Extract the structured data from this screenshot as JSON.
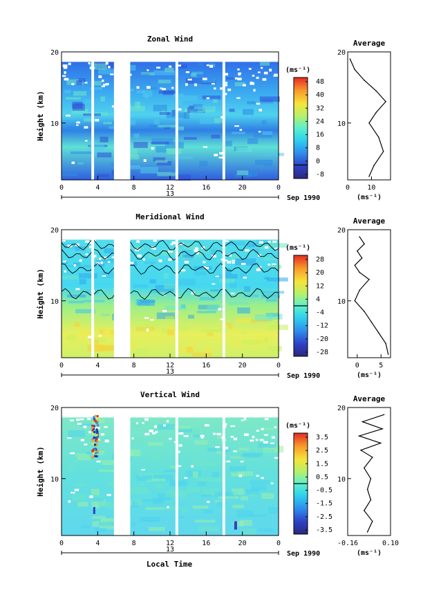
{
  "chart_data": [
    {
      "type": "heatmap",
      "title": "Zonal Wind",
      "ylabel": "Height (km)",
      "xlabel": "",
      "x_ticks": [
        "0",
        "4",
        "8",
        "12",
        "16",
        "20",
        "0"
      ],
      "y_ticks": [
        "20",
        "10"
      ],
      "date_label": "13",
      "month_label": "Sep 1990",
      "xlim": [
        0,
        24
      ],
      "ylim": [
        2,
        20
      ],
      "colorbar": {
        "unit": "(ms⁻¹)",
        "labels": [
          "48",
          "40",
          "32",
          "24",
          "16",
          "8",
          "0",
          "-8"
        ],
        "range": [
          -8,
          52
        ]
      },
      "data_gaps_hours": [
        [
          3.3,
          3.6
        ],
        [
          5.8,
          7.6
        ],
        [
          12.6,
          12.9
        ],
        [
          17.8,
          18.1
        ]
      ],
      "profile": {
        "title": "Average",
        "xlabel": "(ms⁻¹)",
        "x_ticks": [
          "0",
          "10"
        ],
        "y_ticks": [
          "20",
          "10"
        ],
        "xlim": [
          0,
          18
        ],
        "heights": [
          2.5,
          4,
          6,
          8,
          10,
          11.5,
          13,
          14.5,
          16,
          17.5,
          19
        ],
        "values": [
          9,
          11,
          15,
          13,
          9,
          12,
          16,
          12,
          7,
          3,
          1
        ]
      }
    },
    {
      "type": "heatmap",
      "title": "Meridional Wind",
      "ylabel": "Height (km)",
      "xlabel": "",
      "x_ticks": [
        "0",
        "4",
        "8",
        "12",
        "16",
        "20",
        "0"
      ],
      "y_ticks": [
        "20",
        "10"
      ],
      "date_label": "13",
      "month_label": "Sep 1990",
      "xlim": [
        0,
        24
      ],
      "ylim": [
        2,
        20
      ],
      "colorbar": {
        "unit": "(ms⁻¹)",
        "labels": [
          "28",
          "20",
          "12",
          "4",
          "-4",
          "-12",
          "-20",
          "-28"
        ],
        "range": [
          -32,
          32
        ]
      },
      "data_gaps_hours": [
        [
          3.3,
          3.6
        ],
        [
          5.8,
          7.6
        ],
        [
          12.6,
          12.9
        ],
        [
          17.8,
          18.1
        ]
      ],
      "profile": {
        "title": "Average",
        "xlabel": "(ms⁻¹)",
        "x_ticks": [
          "0",
          "5"
        ],
        "y_ticks": [
          "20",
          "10"
        ],
        "xlim": [
          -2,
          7
        ],
        "heights": [
          2.5,
          4,
          5.5,
          7,
          8.5,
          10,
          11.5,
          13,
          14,
          15,
          16,
          17,
          18,
          19
        ],
        "values": [
          6.5,
          6,
          4.5,
          3,
          1.5,
          -0.5,
          0.5,
          2.5,
          0.5,
          -0.5,
          1,
          0,
          1.5,
          0.5
        ]
      }
    },
    {
      "type": "heatmap",
      "title": "Vertical Wind",
      "ylabel": "Height (km)",
      "xlabel": "Local Time",
      "x_ticks": [
        "0",
        "4",
        "8",
        "12",
        "16",
        "20",
        "0"
      ],
      "y_ticks": [
        "20",
        "10"
      ],
      "date_label": "13",
      "month_label": "Sep 1990",
      "xlim": [
        0,
        24
      ],
      "ylim": [
        2,
        20
      ],
      "colorbar": {
        "unit": "(ms⁻¹)",
        "labels": [
          "3.5",
          "2.5",
          "1.5",
          "0.5",
          "-0.5",
          "-1.5",
          "-2.5",
          "-3.5"
        ],
        "range": [
          -4,
          4
        ]
      },
      "data_gaps_hours": [
        [
          5.8,
          7.6
        ],
        [
          12.6,
          12.9
        ],
        [
          17.8,
          18.1
        ]
      ],
      "profile": {
        "title": "Average",
        "xlabel": "(ms⁻¹)",
        "x_ticks": [
          "-0.16",
          "0.10"
        ],
        "y_ticks": [
          "20",
          "10"
        ],
        "xlim": [
          -0.16,
          0.1
        ],
        "heights": [
          2.5,
          4,
          5.5,
          7,
          8.5,
          10,
          11.5,
          13,
          14,
          15,
          16,
          17,
          18,
          19
        ],
        "values": [
          -0.04,
          -0.01,
          -0.06,
          -0.02,
          -0.04,
          -0.02,
          -0.06,
          -0.01,
          -0.08,
          0.04,
          -0.09,
          0.05,
          -0.07,
          0.06
        ]
      }
    }
  ]
}
